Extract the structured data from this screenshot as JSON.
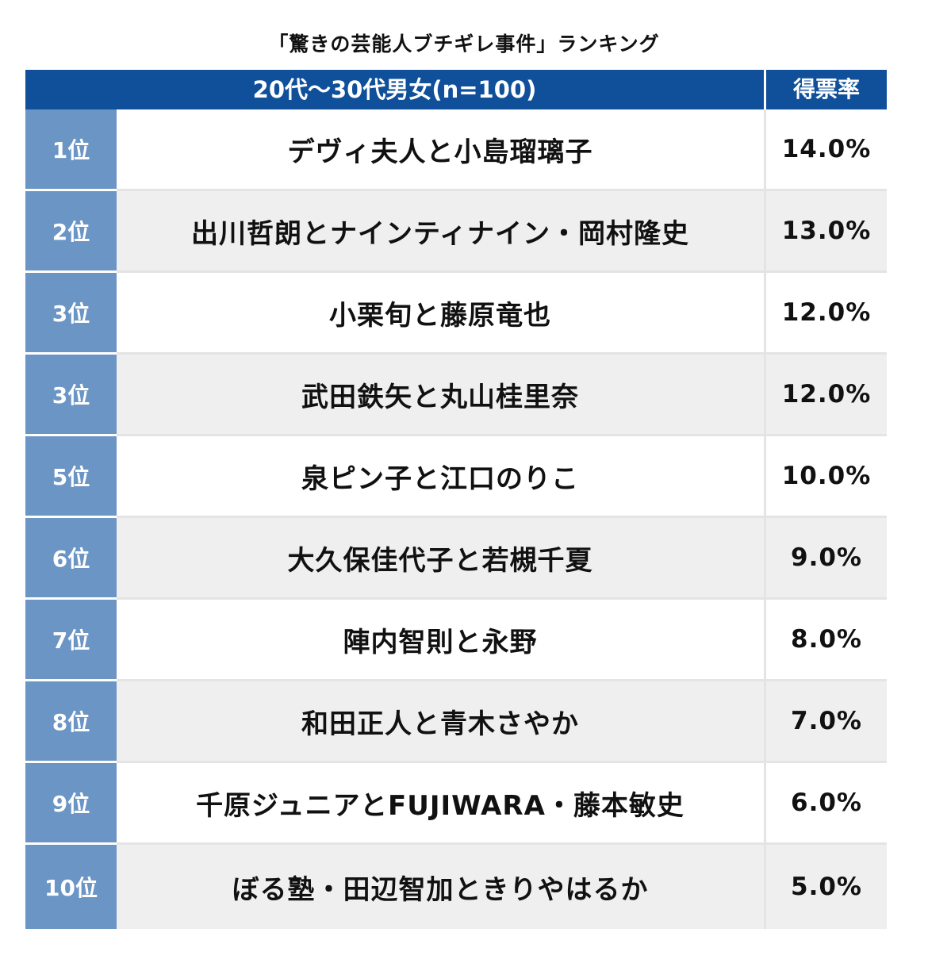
{
  "chart_data": {
    "type": "table",
    "title": "「驚きの芸能人ブチギレ事件」ランキング",
    "columns": {
      "group_header": "20代〜30代男女(n=100)",
      "rate_header": "得票率"
    },
    "rows": [
      {
        "rank": "1位",
        "name": "デヴィ夫人と小島瑠璃子",
        "rate": "14.0%",
        "value": 14.0
      },
      {
        "rank": "2位",
        "name": "出川哲朗とナインティナイン・岡村隆史",
        "rate": "13.0%",
        "value": 13.0
      },
      {
        "rank": "3位",
        "name": "小栗旬と藤原竜也",
        "rate": "12.0%",
        "value": 12.0
      },
      {
        "rank": "3位",
        "name": "武田鉄矢と丸山桂里奈",
        "rate": "12.0%",
        "value": 12.0
      },
      {
        "rank": "5位",
        "name": "泉ピン子と江口のりこ",
        "rate": "10.0%",
        "value": 10.0
      },
      {
        "rank": "6位",
        "name": "大久保佳代子と若槻千夏",
        "rate": "9.0%",
        "value": 9.0
      },
      {
        "rank": "7位",
        "name": "陣内智則と永野",
        "rate": "8.0%",
        "value": 8.0
      },
      {
        "rank": "8位",
        "name": "和田正人と青木さやか",
        "rate": "7.0%",
        "value": 7.0
      },
      {
        "rank": "9位",
        "name": "千原ジュニアとFUJIWARA・藤本敏史",
        "rate": "6.0%",
        "value": 6.0
      },
      {
        "rank": "10位",
        "name": "ぼる塾・田辺智加ときりやはるか",
        "rate": "5.0%",
        "value": 5.0
      }
    ]
  },
  "colors": {
    "header_bg": "#10509a",
    "rank_bg": "#6b95c5",
    "stripe_bg": "#efefef"
  }
}
